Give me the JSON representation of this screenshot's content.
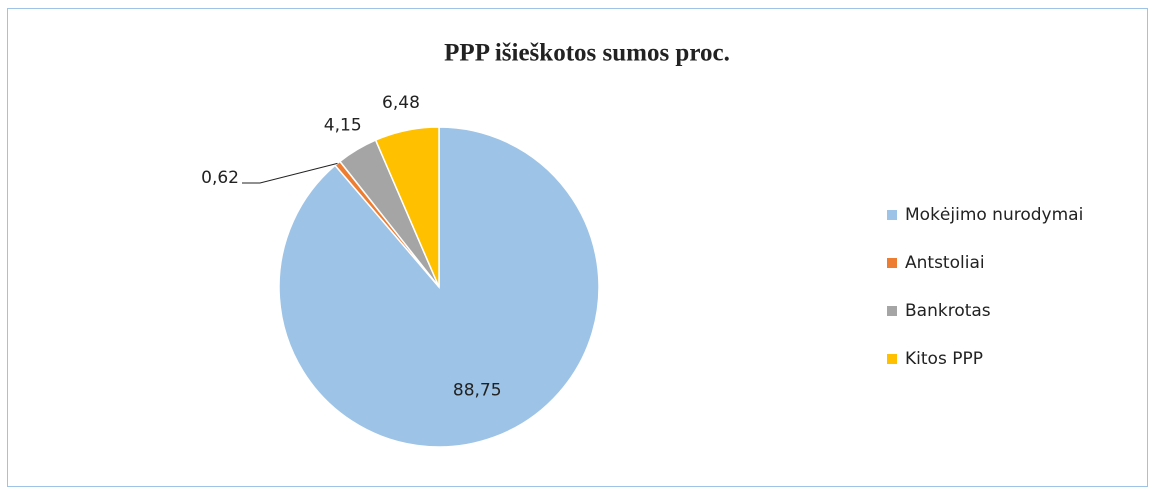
{
  "chart_data": {
    "type": "pie",
    "title": "PPP išieškotos sumos proc.",
    "categories": [
      "Mokėjimo nurodymai",
      "Antstoliai",
      "Bankrotas",
      "Kitos PPP"
    ],
    "values": [
      88.75,
      0.62,
      4.15,
      6.48
    ],
    "value_labels": [
      "88,75",
      "0,62",
      "4,15",
      "6,48"
    ],
    "colors": [
      "#9dc3e6",
      "#ed7d31",
      "#a5a5a5",
      "#ffc000"
    ],
    "legend": "right"
  }
}
